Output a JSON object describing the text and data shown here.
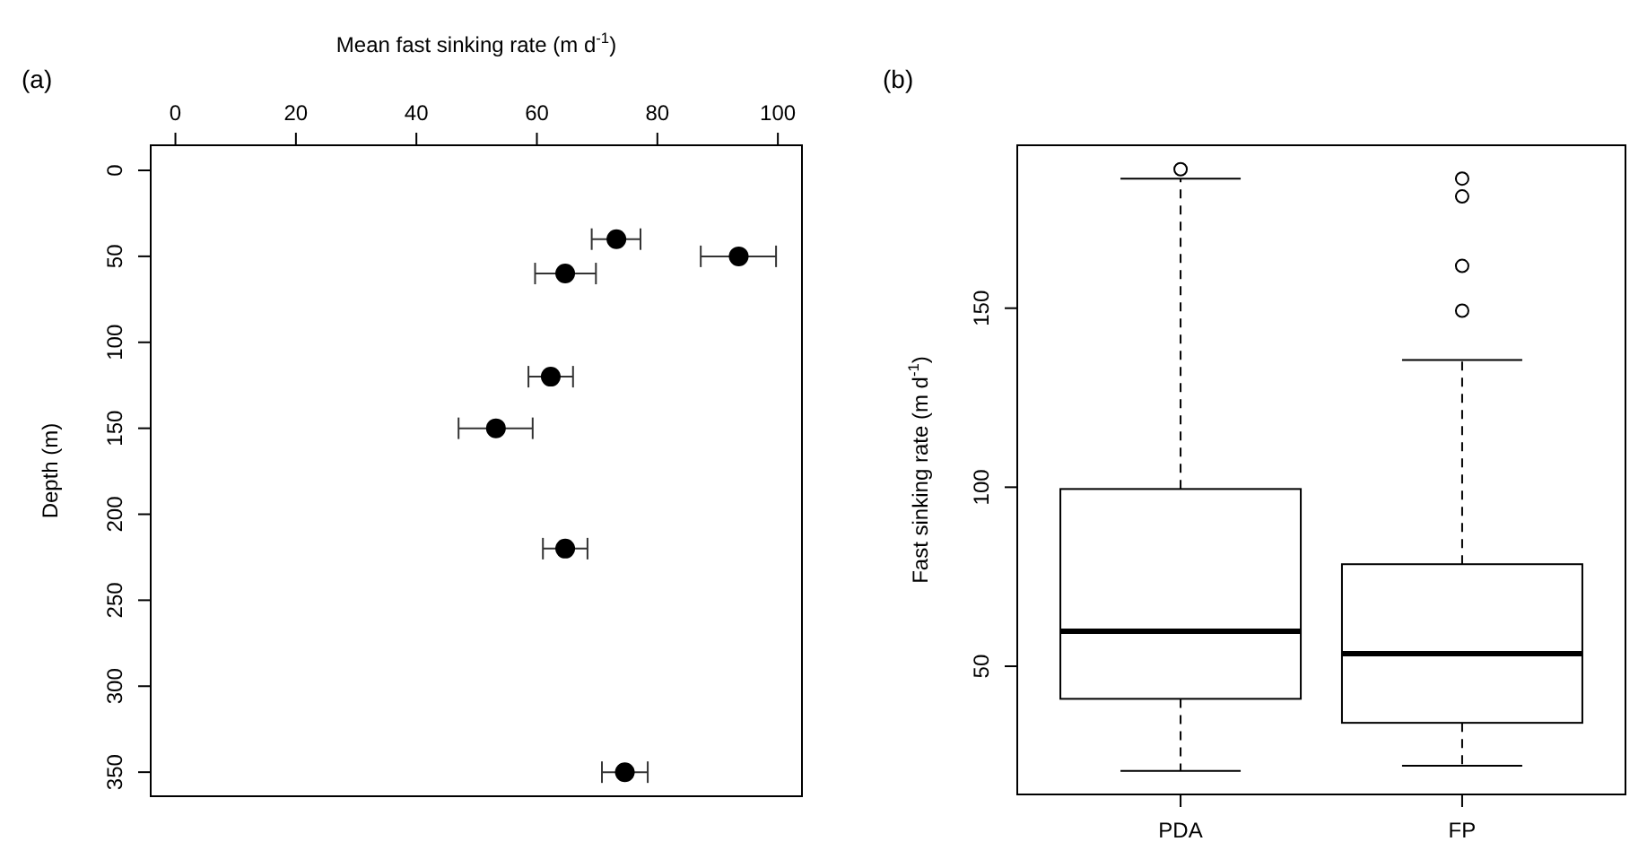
{
  "chart_data": [
    {
      "type": "scatter",
      "title": "(a)",
      "xlabel": "Mean fast sinking rate (m d$^{-1}$)",
      "ylabel": "Depth (m)",
      "marker": "circle",
      "x": [
        73.2,
        93.5,
        64.7,
        62.3,
        53.2,
        64.7,
        74.6
      ],
      "values": [
        40,
        50,
        60,
        120,
        150,
        220,
        350
      ],
      "xerrors": [
        [
          69.1,
          77.2
        ],
        [
          87.2,
          99.7
        ],
        [
          59.7,
          69.8
        ],
        [
          58.6,
          66
        ],
        [
          47,
          59.3
        ],
        [
          61,
          68.4
        ],
        [
          70.8,
          78.4
        ]
      ],
      "color": "#000000",
      "xlim": [
        -4.1,
        104
      ],
      "xticks": [
        0,
        20,
        40,
        60,
        80,
        100
      ],
      "ylim": [
        364,
        -14.6
      ],
      "yticks": [
        0,
        50,
        100,
        150,
        200,
        250,
        300,
        350
      ]
    },
    {
      "type": "box",
      "title": "(b)",
      "ylabel": "Fast sinking rate (m d$^{-1}$)",
      "categories": [
        "PDA",
        "FP"
      ],
      "boxes": [
        {
          "low": 20.8,
          "q1": 40.9,
          "median": 59.8,
          "q3": 99.5,
          "high": 186.2,
          "outliers": [
            188.8
          ]
        },
        {
          "low": 22.2,
          "q1": 34.2,
          "median": 53.5,
          "q3": 78.5,
          "high": 135.5,
          "outliers": [
            186.2,
            181.2,
            161.8,
            149.3
          ]
        }
      ],
      "ylim": [
        14.2,
        195.5
      ],
      "yticks": [
        50,
        100,
        150
      ]
    }
  ]
}
